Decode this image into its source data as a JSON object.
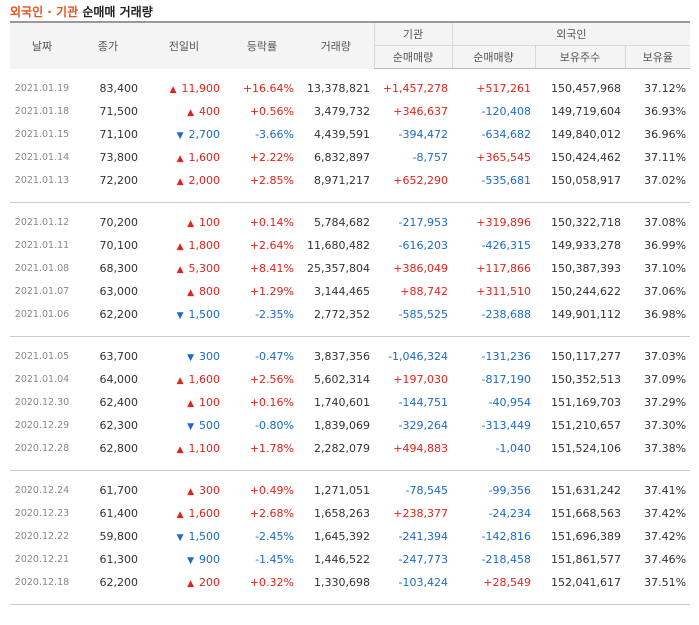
{
  "title": {
    "accent": "외국인 · 기관",
    "rest": "순매매 거래량"
  },
  "headers": {
    "date": "날짜",
    "close": "종가",
    "change": "전일비",
    "rate": "등락률",
    "volume": "거래량",
    "inst": "기관",
    "inst_net": "순매매량",
    "foreign": "외국인",
    "foreign_net": "순매매량",
    "holdings": "보유주수",
    "ratio": "보유율"
  },
  "groups": [
    [
      {
        "date": "2021.01.19",
        "close": "83,400",
        "dir": "up",
        "change": "11,900",
        "rate": "+16.64%",
        "volume": "13,378,821",
        "inst": "+1,457,278",
        "foreign": "+517,261",
        "holdings": "150,457,968",
        "ratio": "37.12%"
      },
      {
        "date": "2021.01.18",
        "close": "71,500",
        "dir": "up",
        "change": "400",
        "rate": "+0.56%",
        "volume": "3,479,732",
        "inst": "+346,637",
        "foreign": "-120,408",
        "holdings": "149,719,604",
        "ratio": "36.93%"
      },
      {
        "date": "2021.01.15",
        "close": "71,100",
        "dir": "down",
        "change": "2,700",
        "rate": "-3.66%",
        "volume": "4,439,591",
        "inst": "-394,472",
        "foreign": "-634,682",
        "holdings": "149,840,012",
        "ratio": "36.96%"
      },
      {
        "date": "2021.01.14",
        "close": "73,800",
        "dir": "up",
        "change": "1,600",
        "rate": "+2.22%",
        "volume": "6,832,897",
        "inst": "-8,757",
        "foreign": "+365,545",
        "holdings": "150,424,462",
        "ratio": "37.11%"
      },
      {
        "date": "2021.01.13",
        "close": "72,200",
        "dir": "up",
        "change": "2,000",
        "rate": "+2.85%",
        "volume": "8,971,217",
        "inst": "+652,290",
        "foreign": "-535,681",
        "holdings": "150,058,917",
        "ratio": "37.02%"
      }
    ],
    [
      {
        "date": "2021.01.12",
        "close": "70,200",
        "dir": "up",
        "change": "100",
        "rate": "+0.14%",
        "volume": "5,784,682",
        "inst": "-217,953",
        "foreign": "+319,896",
        "holdings": "150,322,718",
        "ratio": "37.08%"
      },
      {
        "date": "2021.01.11",
        "close": "70,100",
        "dir": "up",
        "change": "1,800",
        "rate": "+2.64%",
        "volume": "11,680,482",
        "inst": "-616,203",
        "foreign": "-426,315",
        "holdings": "149,933,278",
        "ratio": "36.99%"
      },
      {
        "date": "2021.01.08",
        "close": "68,300",
        "dir": "up",
        "change": "5,300",
        "rate": "+8.41%",
        "volume": "25,357,804",
        "inst": "+386,049",
        "foreign": "+117,866",
        "holdings": "150,387,393",
        "ratio": "37.10%"
      },
      {
        "date": "2021.01.07",
        "close": "63,000",
        "dir": "up",
        "change": "800",
        "rate": "+1.29%",
        "volume": "3,144,465",
        "inst": "+88,742",
        "foreign": "+311,510",
        "holdings": "150,244,622",
        "ratio": "37.06%"
      },
      {
        "date": "2021.01.06",
        "close": "62,200",
        "dir": "down",
        "change": "1,500",
        "rate": "-2.35%",
        "volume": "2,772,352",
        "inst": "-585,525",
        "foreign": "-238,688",
        "holdings": "149,901,112",
        "ratio": "36.98%"
      }
    ],
    [
      {
        "date": "2021.01.05",
        "close": "63,700",
        "dir": "down",
        "change": "300",
        "rate": "-0.47%",
        "volume": "3,837,356",
        "inst": "-1,046,324",
        "foreign": "-131,236",
        "holdings": "150,117,277",
        "ratio": "37.03%"
      },
      {
        "date": "2021.01.04",
        "close": "64,000",
        "dir": "up",
        "change": "1,600",
        "rate": "+2.56%",
        "volume": "5,602,314",
        "inst": "+197,030",
        "foreign": "-817,190",
        "holdings": "150,352,513",
        "ratio": "37.09%"
      },
      {
        "date": "2020.12.30",
        "close": "62,400",
        "dir": "up",
        "change": "100",
        "rate": "+0.16%",
        "volume": "1,740,601",
        "inst": "-144,751",
        "foreign": "-40,954",
        "holdings": "151,169,703",
        "ratio": "37.29%"
      },
      {
        "date": "2020.12.29",
        "close": "62,300",
        "dir": "down",
        "change": "500",
        "rate": "-0.80%",
        "volume": "1,839,069",
        "inst": "-329,264",
        "foreign": "-313,449",
        "holdings": "151,210,657",
        "ratio": "37.30%"
      },
      {
        "date": "2020.12.28",
        "close": "62,800",
        "dir": "up",
        "change": "1,100",
        "rate": "+1.78%",
        "volume": "2,282,079",
        "inst": "+494,883",
        "foreign": "-1,040",
        "holdings": "151,524,106",
        "ratio": "37.38%"
      }
    ],
    [
      {
        "date": "2020.12.24",
        "close": "61,700",
        "dir": "up",
        "change": "300",
        "rate": "+0.49%",
        "volume": "1,271,051",
        "inst": "-78,545",
        "foreign": "-99,356",
        "holdings": "151,631,242",
        "ratio": "37.41%"
      },
      {
        "date": "2020.12.23",
        "close": "61,400",
        "dir": "up",
        "change": "1,600",
        "rate": "+2.68%",
        "volume": "1,658,263",
        "inst": "+238,377",
        "foreign": "-24,234",
        "holdings": "151,668,563",
        "ratio": "37.42%"
      },
      {
        "date": "2020.12.22",
        "close": "59,800",
        "dir": "down",
        "change": "1,500",
        "rate": "-2.45%",
        "volume": "1,645,392",
        "inst": "-241,394",
        "foreign": "-142,816",
        "holdings": "151,696,389",
        "ratio": "37.42%"
      },
      {
        "date": "2020.12.21",
        "close": "61,300",
        "dir": "down",
        "change": "900",
        "rate": "-1.45%",
        "volume": "1,446,522",
        "inst": "-247,773",
        "foreign": "-218,458",
        "holdings": "151,861,577",
        "ratio": "37.46%"
      },
      {
        "date": "2020.12.18",
        "close": "62,200",
        "dir": "up",
        "change": "200",
        "rate": "+0.32%",
        "volume": "1,330,698",
        "inst": "-103,424",
        "foreign": "+28,549",
        "holdings": "152,041,617",
        "ratio": "37.51%"
      }
    ]
  ],
  "colors": {
    "up": "#e2231a",
    "down": "#1b6ac9",
    "accent": "#e8541c"
  },
  "icons": {
    "up": "triangle-up-icon",
    "down": "triangle-down-icon"
  }
}
